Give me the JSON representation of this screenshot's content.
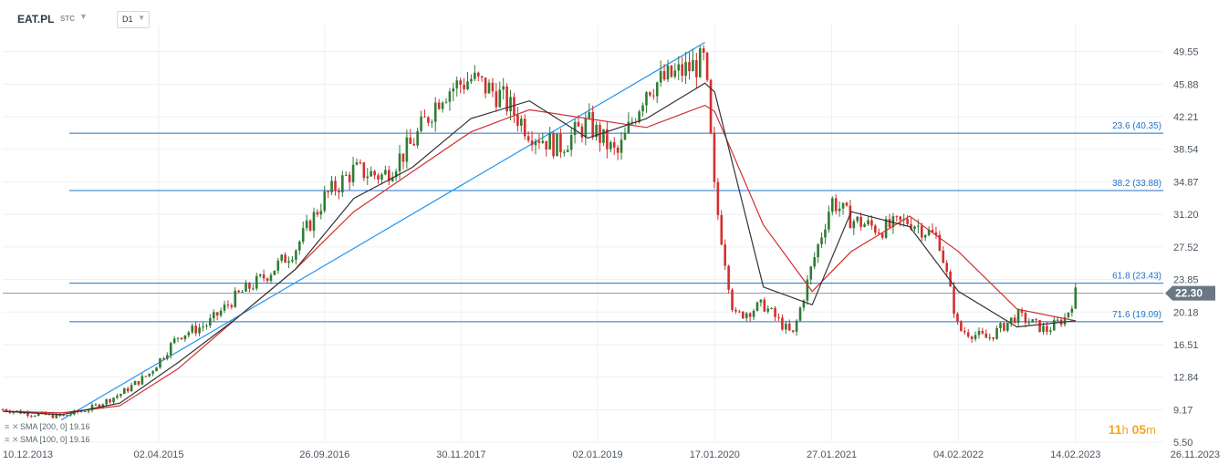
{
  "header": {
    "symbol": "EAT.PL",
    "exchange": "STC",
    "timeframe": "D1"
  },
  "countdown": {
    "hours": "11",
    "h_unit": "h",
    "minutes": "05",
    "m_unit": "m"
  },
  "colors": {
    "up_candle": "#2e7d32",
    "down_candle": "#d32f2f",
    "sma200": "#d32f2f",
    "sma100": "#333333",
    "fib_line": "#1e73c8",
    "trendline": "#2196f3",
    "price_tag": "#6b7884",
    "grid": "#eef0f2"
  },
  "indicators": [
    {
      "label": "SMA [200, 0] 19.16",
      "color": "#d32f2f"
    },
    {
      "label": "SMA [100, 0] 19.16",
      "color": "#333333"
    }
  ],
  "chart_data": {
    "type": "line",
    "title": "EAT.PL",
    "timeframe": "D1",
    "x_tick_labels": [
      "10.12.2013",
      "02.04.2015",
      "26.09.2016",
      "30.11.2017",
      "02.01.2019",
      "17.01.2020",
      "27.01.2021",
      "04.02.2022",
      "14.02.2023",
      "26.11.2023"
    ],
    "y_tick_labels": [
      "49.55",
      "45.88",
      "42.21",
      "38.54",
      "34.87",
      "31.20",
      "27.52",
      "23.85",
      "20.18",
      "16.51",
      "12.84",
      "9.17",
      "5.50"
    ],
    "ylim": [
      5.5,
      52.5
    ],
    "last_price": "22.30",
    "series": [
      {
        "name": "EAT.PL",
        "style": "candles",
        "x": [
          "2013-12",
          "2014-03",
          "2014-06",
          "2014-09",
          "2014-12",
          "2015-03",
          "2015-06",
          "2015-09",
          "2015-12",
          "2016-03",
          "2016-06",
          "2016-09",
          "2016-12",
          "2017-03",
          "2017-06",
          "2017-09",
          "2017-12",
          "2018-03",
          "2018-06",
          "2018-09",
          "2018-12",
          "2019-03",
          "2019-06",
          "2019-09",
          "2019-12",
          "2020-01",
          "2020-03",
          "2020-06",
          "2020-09",
          "2020-11",
          "2021-01",
          "2021-03",
          "2021-06",
          "2021-09",
          "2021-12",
          "2022-02",
          "2022-05",
          "2022-08",
          "2022-11",
          "2023-01",
          "2023-02"
        ],
        "close": [
          9.2,
          8.7,
          8.4,
          9.3,
          10.9,
          13.2,
          17.5,
          18.8,
          22.0,
          24.3,
          27.3,
          33.1,
          36.2,
          35.5,
          39.2,
          44.9,
          46.5,
          44.6,
          40.6,
          38.8,
          41.5,
          37.8,
          45.5,
          47.0,
          48.5,
          33.5,
          19.6,
          21.0,
          17.5,
          25.5,
          32.8,
          30.6,
          29.5,
          30.5,
          28.4,
          18.2,
          17.2,
          19.8,
          18.1,
          19.6,
          22.3
        ]
      },
      {
        "name": "SMA [100, 0]",
        "x": [
          "2013-12",
          "2014-06",
          "2014-12",
          "2015-06",
          "2015-12",
          "2016-06",
          "2016-12",
          "2017-06",
          "2017-12",
          "2018-06",
          "2018-12",
          "2019-06",
          "2019-12",
          "2020-01",
          "2020-06",
          "2020-11",
          "2021-03",
          "2021-09",
          "2022-02",
          "2022-08",
          "2023-02"
        ],
        "values": [
          9.0,
          8.6,
          9.9,
          14.5,
          19.5,
          25.0,
          33.0,
          36.5,
          42.0,
          44.0,
          39.8,
          42.0,
          46.0,
          45.0,
          23.0,
          21.0,
          31.5,
          29.8,
          22.5,
          18.5,
          19.2
        ]
      },
      {
        "name": "SMA [200, 0]",
        "x": [
          "2013-12",
          "2014-06",
          "2014-12",
          "2015-06",
          "2015-12",
          "2016-06",
          "2016-12",
          "2017-06",
          "2017-12",
          "2018-06",
          "2018-12",
          "2019-06",
          "2019-12",
          "2020-01",
          "2020-06",
          "2020-11",
          "2021-03",
          "2021-09",
          "2022-02",
          "2022-08",
          "2023-02"
        ],
        "values": [
          9.0,
          8.8,
          9.6,
          13.8,
          19.5,
          25.0,
          31.5,
          36.0,
          40.5,
          43.0,
          42.0,
          41.0,
          43.5,
          42.8,
          30.0,
          22.5,
          27.0,
          31.0,
          27.0,
          20.5,
          19.2
        ]
      }
    ],
    "fibonacci_levels": [
      {
        "label": "23.6 (40.35)",
        "value": 40.35
      },
      {
        "label": "38.2 (33.88)",
        "value": 33.88
      },
      {
        "label": "61.8 (23.43)",
        "value": 23.43
      },
      {
        "label": "71.6 (19.09)",
        "value": 19.09
      }
    ],
    "trendline": {
      "from": {
        "x": "2014-06",
        "y": 8.0
      },
      "to": {
        "x": "2019-12",
        "y": 50.6
      }
    },
    "current_price_line": 22.3,
    "grid": true
  }
}
